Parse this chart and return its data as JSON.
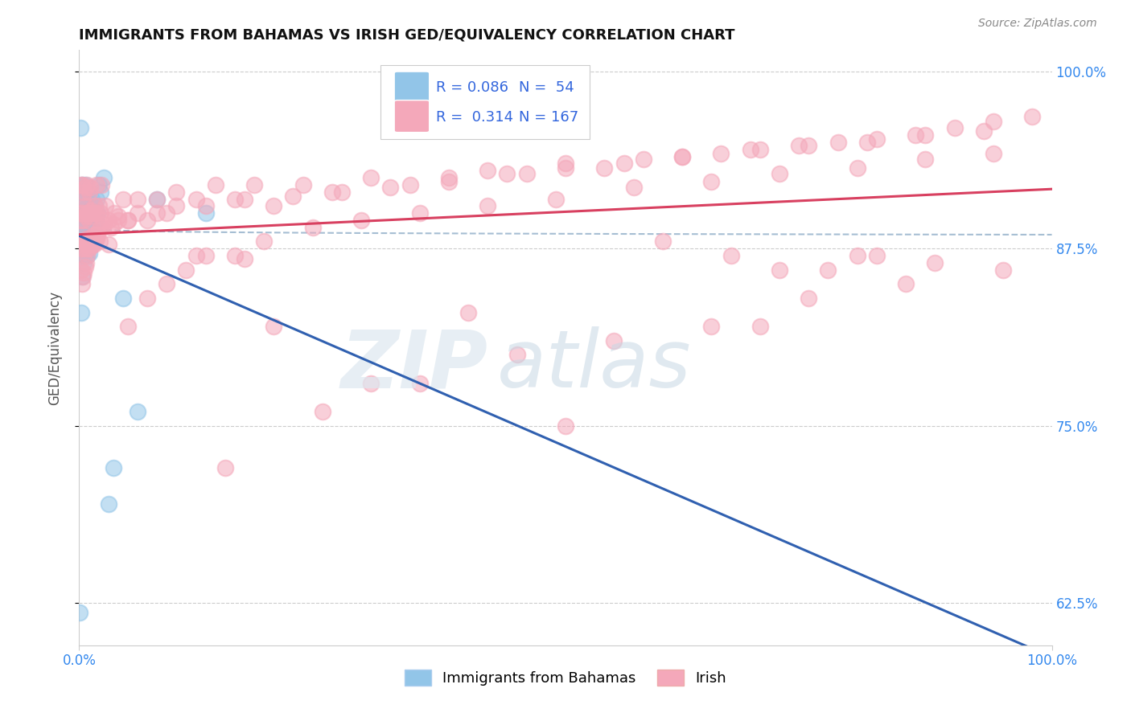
{
  "title": "IMMIGRANTS FROM BAHAMAS VS IRISH GED/EQUIVALENCY CORRELATION CHART",
  "source_text": "Source: ZipAtlas.com",
  "ylabel": "GED/Equivalency",
  "xlim": [
    0.0,
    1.0
  ],
  "ylim": [
    0.595,
    1.015
  ],
  "yticks": [
    0.625,
    0.75,
    0.875,
    1.0
  ],
  "ytick_labels": [
    "62.5%",
    "75.0%",
    "87.5%",
    "100.0%"
  ],
  "xtick_labels": [
    "0.0%",
    "100.0%"
  ],
  "legend_R_blue": "R = 0.086",
  "legend_N_blue": "N =  54",
  "legend_R_pink": "R =  0.314",
  "legend_N_pink": "N = 167",
  "blue_color": "#92c5e8",
  "pink_color": "#f4a8ba",
  "trend_blue_color": "#3060b0",
  "trend_pink_color": "#d84060",
  "curve_color": "#90aec8",
  "blue_scatter_x": [
    0.0005,
    0.001,
    0.001,
    0.0015,
    0.002,
    0.002,
    0.002,
    0.003,
    0.003,
    0.003,
    0.004,
    0.004,
    0.004,
    0.005,
    0.005,
    0.005,
    0.005,
    0.006,
    0.006,
    0.006,
    0.006,
    0.007,
    0.007,
    0.007,
    0.008,
    0.008,
    0.008,
    0.009,
    0.009,
    0.009,
    0.01,
    0.01,
    0.01,
    0.011,
    0.011,
    0.012,
    0.012,
    0.013,
    0.013,
    0.014,
    0.015,
    0.016,
    0.017,
    0.018,
    0.019,
    0.02,
    0.022,
    0.025,
    0.03,
    0.035,
    0.045,
    0.06,
    0.08,
    0.13
  ],
  "blue_scatter_y": [
    0.618,
    0.91,
    0.88,
    0.96,
    0.83,
    0.87,
    0.9,
    0.855,
    0.89,
    0.92,
    0.875,
    0.9,
    0.91,
    0.865,
    0.885,
    0.9,
    0.915,
    0.87,
    0.89,
    0.905,
    0.92,
    0.875,
    0.895,
    0.91,
    0.87,
    0.89,
    0.905,
    0.875,
    0.895,
    0.91,
    0.872,
    0.888,
    0.908,
    0.878,
    0.9,
    0.88,
    0.902,
    0.885,
    0.91,
    0.888,
    0.9,
    0.905,
    0.895,
    0.91,
    0.9,
    0.92,
    0.915,
    0.925,
    0.695,
    0.72,
    0.84,
    0.76,
    0.91,
    0.9
  ],
  "pink_scatter_x": [
    0.001,
    0.001,
    0.002,
    0.002,
    0.003,
    0.003,
    0.003,
    0.004,
    0.004,
    0.005,
    0.005,
    0.005,
    0.006,
    0.006,
    0.007,
    0.007,
    0.007,
    0.008,
    0.008,
    0.008,
    0.009,
    0.009,
    0.01,
    0.01,
    0.01,
    0.011,
    0.011,
    0.011,
    0.012,
    0.012,
    0.013,
    0.013,
    0.014,
    0.014,
    0.015,
    0.015,
    0.016,
    0.016,
    0.017,
    0.018,
    0.018,
    0.019,
    0.02,
    0.021,
    0.022,
    0.023,
    0.025,
    0.027,
    0.03,
    0.033,
    0.036,
    0.04,
    0.045,
    0.05,
    0.06,
    0.07,
    0.08,
    0.09,
    0.1,
    0.12,
    0.14,
    0.16,
    0.18,
    0.2,
    0.23,
    0.26,
    0.3,
    0.34,
    0.38,
    0.42,
    0.46,
    0.5,
    0.54,
    0.58,
    0.62,
    0.66,
    0.7,
    0.74,
    0.78,
    0.82,
    0.86,
    0.9,
    0.94,
    0.98,
    0.002,
    0.003,
    0.004,
    0.005,
    0.006,
    0.007,
    0.008,
    0.009,
    0.01,
    0.011,
    0.012,
    0.013,
    0.014,
    0.015,
    0.016,
    0.017,
    0.018,
    0.02,
    0.022,
    0.025,
    0.03,
    0.035,
    0.04,
    0.05,
    0.06,
    0.08,
    0.1,
    0.13,
    0.17,
    0.22,
    0.27,
    0.32,
    0.38,
    0.44,
    0.5,
    0.56,
    0.62,
    0.69,
    0.75,
    0.81,
    0.87,
    0.93,
    0.05,
    0.4,
    0.6,
    0.7,
    0.8,
    0.3,
    0.5,
    0.2,
    0.15,
    0.25,
    0.35,
    0.45,
    0.55,
    0.65,
    0.75,
    0.85,
    0.95,
    0.07,
    0.09,
    0.11,
    0.13,
    0.16,
    0.19,
    0.24,
    0.29,
    0.35,
    0.42,
    0.49,
    0.57,
    0.65,
    0.72,
    0.8,
    0.87,
    0.94,
    0.12,
    0.17,
    0.67,
    0.72,
    0.77,
    0.82,
    0.88
  ],
  "pink_scatter_y": [
    0.9,
    0.875,
    0.895,
    0.92,
    0.88,
    0.9,
    0.92,
    0.885,
    0.91,
    0.875,
    0.895,
    0.915,
    0.88,
    0.905,
    0.875,
    0.898,
    0.918,
    0.882,
    0.9,
    0.92,
    0.878,
    0.9,
    0.875,
    0.895,
    0.915,
    0.878,
    0.898,
    0.918,
    0.88,
    0.902,
    0.88,
    0.9,
    0.878,
    0.9,
    0.878,
    0.9,
    0.882,
    0.905,
    0.882,
    0.9,
    0.92,
    0.885,
    0.905,
    0.88,
    0.9,
    0.92,
    0.895,
    0.905,
    0.878,
    0.89,
    0.9,
    0.895,
    0.91,
    0.895,
    0.91,
    0.895,
    0.91,
    0.9,
    0.915,
    0.91,
    0.92,
    0.91,
    0.92,
    0.905,
    0.92,
    0.915,
    0.925,
    0.92,
    0.925,
    0.93,
    0.928,
    0.935,
    0.932,
    0.938,
    0.94,
    0.942,
    0.945,
    0.948,
    0.95,
    0.952,
    0.955,
    0.96,
    0.965,
    0.968,
    0.86,
    0.85,
    0.855,
    0.858,
    0.862,
    0.865,
    0.87,
    0.875,
    0.878,
    0.882,
    0.878,
    0.882,
    0.878,
    0.885,
    0.88,
    0.885,
    0.882,
    0.888,
    0.89,
    0.892,
    0.895,
    0.892,
    0.898,
    0.895,
    0.9,
    0.9,
    0.905,
    0.905,
    0.91,
    0.912,
    0.915,
    0.918,
    0.922,
    0.928,
    0.932,
    0.935,
    0.94,
    0.945,
    0.948,
    0.95,
    0.955,
    0.958,
    0.82,
    0.83,
    0.88,
    0.82,
    0.87,
    0.78,
    0.75,
    0.82,
    0.72,
    0.76,
    0.78,
    0.8,
    0.81,
    0.82,
    0.84,
    0.85,
    0.86,
    0.84,
    0.85,
    0.86,
    0.87,
    0.87,
    0.88,
    0.89,
    0.895,
    0.9,
    0.905,
    0.91,
    0.918,
    0.922,
    0.928,
    0.932,
    0.938,
    0.942,
    0.87,
    0.868,
    0.87,
    0.86,
    0.86,
    0.87,
    0.865
  ]
}
